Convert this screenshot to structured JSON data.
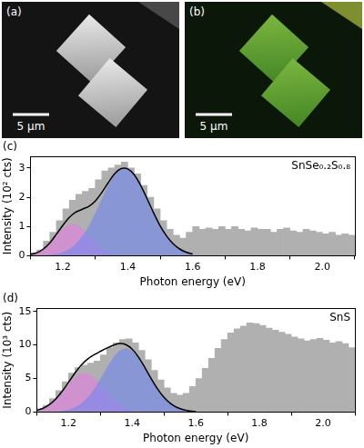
{
  "images": [
    {
      "panel": "(a)",
      "scale_bar": "5 μm"
    },
    {
      "panel": "(b)",
      "scale_bar": "5 μm"
    }
  ],
  "chart_data": [
    {
      "type": "bar",
      "panel": "(c)",
      "annotations": [
        "SnSe₀.₂S₀.₈"
      ],
      "x_label": "Photon energy (eV)",
      "y_label": "Intensity (10² cts)",
      "xlim": [
        1.1,
        2.1
      ],
      "xticks": [
        1.2,
        1.4,
        1.6,
        1.8,
        {
          "value": 2,
          "label": "2.0"
        }
      ],
      "ylim": [
        0,
        3.4
      ],
      "yticks": [
        0,
        1,
        2,
        3
      ],
      "grid": false,
      "series": [
        {
          "type": "bar",
          "color": "#b0b0b0",
          "x": [
            1.11,
            1.13,
            1.15,
            1.17,
            1.19,
            1.21,
            1.23,
            1.25,
            1.27,
            1.29,
            1.31,
            1.33,
            1.35,
            1.37,
            1.39,
            1.41,
            1.43,
            1.45,
            1.47,
            1.49,
            1.51,
            1.53,
            1.55,
            1.57,
            1.59,
            1.61,
            1.63,
            1.65,
            1.67,
            1.69,
            1.71,
            1.73,
            1.75,
            1.77,
            1.79,
            1.81,
            1.83,
            1.85,
            1.87,
            1.89,
            1.91,
            1.93,
            1.95,
            1.97,
            1.99,
            2.01,
            2.03,
            2.05,
            2.07,
            2.09
          ],
          "values": [
            0.1,
            0.2,
            0.5,
            0.8,
            1.2,
            1.6,
            1.9,
            2.1,
            2.2,
            2.3,
            2.6,
            2.9,
            3.0,
            3.1,
            3.2,
            3.0,
            2.8,
            2.4,
            2.0,
            1.6,
            1.2,
            0.9,
            0.7,
            0.6,
            0.8,
            1.0,
            0.9,
            0.95,
            0.9,
            1.0,
            0.9,
            1.0,
            0.9,
            0.85,
            0.95,
            0.9,
            0.9,
            0.8,
            0.9,
            0.95,
            0.85,
            0.8,
            0.9,
            0.85,
            0.8,
            0.75,
            0.8,
            0.7,
            0.75,
            0.7
          ]
        },
        {
          "type": "area",
          "color": "#e57ee5",
          "x": [
            1.1,
            1.12,
            1.14,
            1.16,
            1.18,
            1.2,
            1.22,
            1.24,
            1.26,
            1.28,
            1.3,
            1.32,
            1.34,
            1.36,
            1.38,
            1.4,
            1.42,
            1.44,
            1.46,
            1.48,
            1.5,
            1.52,
            1.54,
            1.56,
            1.58,
            1.6
          ],
          "values": [
            0.04,
            0.1,
            0.22,
            0.41,
            0.67,
            0.92,
            1.08,
            1.08,
            0.92,
            0.67,
            0.41,
            0.22,
            0.1,
            0.04,
            0.01,
            0,
            0,
            0,
            0,
            0,
            0,
            0,
            0,
            0,
            0,
            0
          ]
        },
        {
          "type": "area",
          "color": "#6f86ee",
          "x": [
            1.1,
            1.12,
            1.14,
            1.16,
            1.18,
            1.2,
            1.22,
            1.24,
            1.26,
            1.28,
            1.3,
            1.32,
            1.34,
            1.36,
            1.38,
            1.4,
            1.42,
            1.44,
            1.46,
            1.48,
            1.5,
            1.52,
            1.54,
            1.56,
            1.58,
            1.6
          ],
          "values": [
            0,
            0,
            0.01,
            0.03,
            0.06,
            0.12,
            0.23,
            0.41,
            0.67,
            1.02,
            1.46,
            1.94,
            2.4,
            2.77,
            2.97,
            2.97,
            2.77,
            2.4,
            1.94,
            1.46,
            1.02,
            0.67,
            0.41,
            0.23,
            0.12,
            0.06
          ]
        },
        {
          "type": "line",
          "color": "#000000",
          "x": [
            1.1,
            1.12,
            1.14,
            1.16,
            1.18,
            1.2,
            1.22,
            1.24,
            1.26,
            1.28,
            1.3,
            1.32,
            1.34,
            1.36,
            1.38,
            1.4,
            1.42,
            1.44,
            1.46,
            1.48,
            1.5,
            1.52,
            1.54,
            1.56,
            1.58,
            1.6
          ],
          "values": [
            0.04,
            0.1,
            0.23,
            0.44,
            0.73,
            1.04,
            1.31,
            1.49,
            1.59,
            1.69,
            1.87,
            2.16,
            2.5,
            2.81,
            2.98,
            2.97,
            2.77,
            2.4,
            1.94,
            1.46,
            1.02,
            0.67,
            0.41,
            0.23,
            0.12,
            0.06
          ]
        }
      ]
    },
    {
      "type": "bar",
      "panel": "(d)",
      "annotations": [
        "SnS"
      ],
      "x_label": "Photon energy (eV)",
      "y_label": "Intensity (10³ cts)",
      "xlim": [
        1.1,
        2.1
      ],
      "xticks": [
        1.2,
        1.4,
        1.6,
        1.8,
        {
          "value": 2,
          "label": "2.0"
        }
      ],
      "ylim": [
        0,
        15.5
      ],
      "yticks": [
        0,
        5,
        10,
        15
      ],
      "grid": false,
      "series": [
        {
          "type": "bar",
          "color": "#b0b0b0",
          "x": [
            1.11,
            1.13,
            1.15,
            1.17,
            1.19,
            1.21,
            1.23,
            1.25,
            1.27,
            1.29,
            1.31,
            1.33,
            1.35,
            1.37,
            1.39,
            1.41,
            1.43,
            1.45,
            1.47,
            1.49,
            1.51,
            1.53,
            1.55,
            1.57,
            1.59,
            1.61,
            1.63,
            1.65,
            1.67,
            1.69,
            1.71,
            1.73,
            1.75,
            1.77,
            1.79,
            1.81,
            1.83,
            1.85,
            1.87,
            1.89,
            1.91,
            1.93,
            1.95,
            1.97,
            1.99,
            2.01,
            2.03,
            2.05,
            2.07,
            2.09
          ],
          "values": [
            0.5,
            1.0,
            2.0,
            3.2,
            4.5,
            5.8,
            6.6,
            7.0,
            7.3,
            7.6,
            8.5,
            9.6,
            10.3,
            10.8,
            10.9,
            10.3,
            9.2,
            7.8,
            6.2,
            4.8,
            3.6,
            2.8,
            2.5,
            2.8,
            3.8,
            5.0,
            6.5,
            8.0,
            9.5,
            10.8,
            11.8,
            12.4,
            12.8,
            13.3,
            13.2,
            12.9,
            12.5,
            12.2,
            11.9,
            11.6,
            11.2,
            10.9,
            10.6,
            10.8,
            11.0,
            10.7,
            10.3,
            10.5,
            10.2,
            9.6
          ]
        },
        {
          "type": "area",
          "color": "#e57ee5",
          "x": [
            1.1,
            1.12,
            1.14,
            1.16,
            1.18,
            1.2,
            1.22,
            1.24,
            1.26,
            1.28,
            1.3,
            1.32,
            1.34,
            1.36,
            1.38,
            1.4,
            1.42,
            1.44,
            1.46,
            1.48,
            1.5,
            1.52,
            1.54,
            1.56,
            1.58,
            1.6
          ],
          "values": [
            0.25,
            0.55,
            1.08,
            1.88,
            2.94,
            4.1,
            5.12,
            5.72,
            5.72,
            5.12,
            4.1,
            2.94,
            1.88,
            1.08,
            0.55,
            0.25,
            0.1,
            0.04,
            0.01,
            0,
            0,
            0,
            0,
            0,
            0,
            0
          ]
        },
        {
          "type": "area",
          "color": "#6f86ee",
          "x": [
            1.1,
            1.12,
            1.14,
            1.16,
            1.18,
            1.2,
            1.22,
            1.24,
            1.26,
            1.28,
            1.3,
            1.32,
            1.34,
            1.36,
            1.38,
            1.4,
            1.42,
            1.44,
            1.46,
            1.48,
            1.5,
            1.52,
            1.54,
            1.56,
            1.58,
            1.6
          ],
          "values": [
            0,
            0.01,
            0.03,
            0.07,
            0.16,
            0.35,
            0.7,
            1.29,
            2.18,
            3.42,
            4.94,
            6.58,
            8.07,
            9.12,
            9.5,
            9.12,
            8.07,
            6.58,
            4.94,
            3.42,
            2.18,
            1.29,
            0.7,
            0.35,
            0.16,
            0.07
          ]
        },
        {
          "type": "line",
          "color": "#000000",
          "x": [
            1.1,
            1.12,
            1.14,
            1.16,
            1.18,
            1.2,
            1.22,
            1.24,
            1.26,
            1.28,
            1.3,
            1.32,
            1.34,
            1.36,
            1.38,
            1.4,
            1.42,
            1.44,
            1.46,
            1.48,
            1.5,
            1.52,
            1.54,
            1.56,
            1.58,
            1.6
          ],
          "values": [
            0.25,
            0.56,
            1.11,
            1.95,
            3.1,
            4.45,
            5.82,
            7.01,
            7.9,
            8.54,
            9.04,
            9.52,
            9.95,
            10.2,
            10.05,
            9.37,
            8.17,
            6.62,
            4.95,
            3.42,
            2.18,
            1.29,
            0.7,
            0.35,
            0.16,
            0.07
          ]
        }
      ]
    }
  ]
}
